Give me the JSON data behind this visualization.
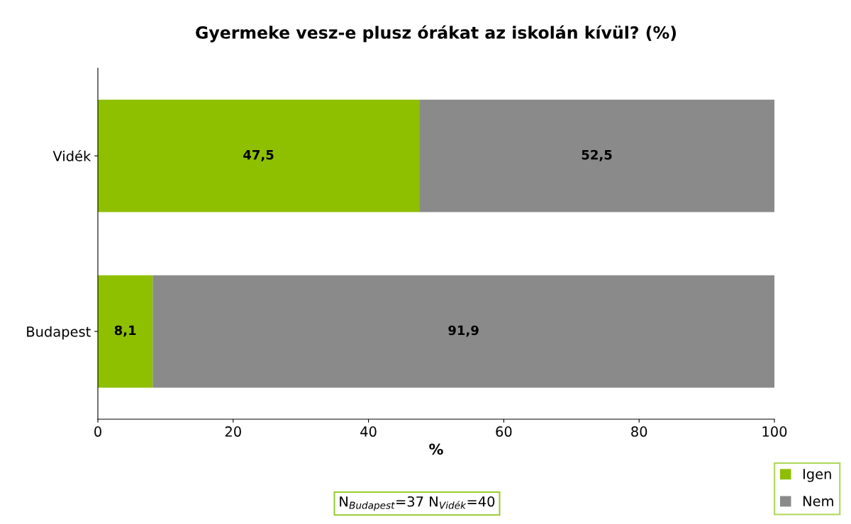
{
  "chart_data": {
    "type": "bar",
    "orientation": "horizontal",
    "stacked": true,
    "title": "Gyermeke vesz-e plusz órákat az iskolán kívül? (%)",
    "xlabel": "%",
    "categories": [
      "Vidék",
      "Budapest"
    ],
    "series": [
      {
        "name": "Igen",
        "color": "#8fc000",
        "values": [
          47.5,
          8.1
        ],
        "value_labels": [
          "47,5",
          "8,1"
        ]
      },
      {
        "name": "Nem",
        "color": "#8a8a8a",
        "values": [
          52.5,
          91.9
        ],
        "value_labels": [
          "52,5",
          "91,9"
        ]
      }
    ],
    "xlim": [
      0,
      100
    ],
    "xticks": [
      0,
      20,
      40,
      60,
      80,
      100
    ],
    "grid": false,
    "legend": "bottom right",
    "annotations": [
      "N$_{Budapest}$=37 N$_{Vidék}$=40"
    ]
  }
}
